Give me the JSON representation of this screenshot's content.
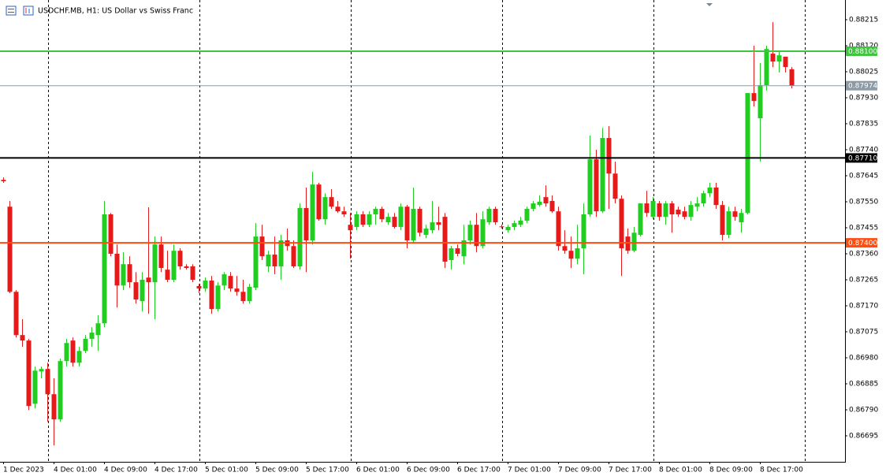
{
  "chart_data": {
    "type": "candlestick",
    "title": "USDCHF.MB, H1:  US Dollar vs Swiss Franc",
    "categories": [
      "1 Dec 2023",
      null,
      null,
      null,
      null,
      null,
      null,
      null,
      "4 Dec 01:00",
      null,
      null,
      null,
      null,
      null,
      null,
      null,
      "4 Dec 09:00",
      null,
      null,
      null,
      null,
      null,
      null,
      null,
      "4 Dec 17:00",
      null,
      null,
      null,
      null,
      null,
      null,
      null,
      "5 Dec 01:00",
      null,
      null,
      null,
      null,
      null,
      null,
      null,
      "5 Dec 09:00",
      null,
      null,
      null,
      null,
      null,
      null,
      null,
      "5 Dec 17:00",
      null,
      null,
      null,
      null,
      null,
      null,
      null,
      "6 Dec 01:00",
      null,
      null,
      null,
      null,
      null,
      null,
      null,
      "6 Dec 09:00",
      null,
      null,
      null,
      null,
      null,
      null,
      null,
      "6 Dec 17:00",
      null,
      null,
      null,
      null,
      null,
      null,
      null,
      "7 Dec 01:00",
      null,
      null,
      null,
      null,
      null,
      null,
      null,
      "7 Dec 09:00",
      null,
      null,
      null,
      null,
      null,
      null,
      null,
      "7 Dec 17:00",
      null,
      null,
      null,
      null,
      null,
      null,
      null,
      "8 Dec 01:00",
      null,
      null,
      null,
      null,
      null,
      null,
      null,
      "8 Dec 09:00",
      null,
      null,
      null,
      null,
      null,
      null,
      null,
      "8 Dec 17:00",
      null,
      null,
      null,
      null,
      null
    ],
    "open": [
      0.8763,
      0.87532,
      0.87221,
      0.87063,
      0.87043,
      0.86812,
      0.8693,
      0.86939,
      0.86847,
      0.86755,
      0.86968,
      0.87043,
      0.86962,
      0.87005,
      0.87049,
      0.87063,
      0.87106,
      0.87504,
      0.8736,
      0.87244,
      0.87322,
      0.87256,
      0.87187,
      0.87273,
      0.87256,
      0.87394,
      0.87302,
      0.87265,
      0.87371,
      0.87314,
      0.87314,
      0.87242,
      0.87233,
      0.87262,
      0.87158,
      0.87244,
      0.87279,
      0.87233,
      0.87221,
      0.87187,
      0.87236,
      0.87423,
      0.87314,
      0.87357,
      0.87314,
      0.87409,
      0.87388,
      0.87314,
      0.87527,
      0.87409,
      0.87613,
      0.87486,
      0.87567,
      0.87532,
      0.87515,
      0.87466,
      0.87458,
      0.87504,
      0.87466,
      0.87504,
      0.87524,
      0.87475,
      0.87495,
      0.87458,
      0.87532,
      0.87409,
      0.87524,
      0.87429,
      0.87446,
      0.87475,
      0.87495,
      0.87337,
      0.8738,
      0.87351,
      0.87409,
      0.87466,
      0.87388,
      0.87475,
      0.87524,
      0.8746,
      0.87446,
      0.87458,
      0.87466,
      0.87481,
      0.87524,
      0.87538,
      0.87567,
      0.87553,
      0.87515,
      0.87388,
      0.87371,
      0.87342,
      0.8738,
      0.87504,
      0.87705,
      0.87515,
      0.87783,
      0.87653,
      0.87561,
      0.87423,
      0.87371,
      0.87429,
      0.87544,
      0.87495,
      0.87544,
      0.87495,
      0.87544,
      0.87521,
      0.87515,
      0.87495,
      0.87532,
      0.87544,
      0.87581,
      0.87602,
      0.87538,
      0.87429,
      0.87515,
      0.87475,
      0.87509,
      0.87947,
      0.87855,
      0.87976,
      0.88091,
      0.88062,
      0.8808,
      0.88034
    ],
    "high": [
      0.87639,
      0.87553,
      0.87227,
      0.87121,
      0.87049,
      0.86948,
      0.86948,
      0.86962,
      0.86905,
      0.86977,
      0.87049,
      0.87054,
      0.8702,
      0.87063,
      0.87092,
      0.87135,
      0.87553,
      0.87509,
      0.87394,
      0.87365,
      0.87351,
      0.87293,
      0.87293,
      0.8753,
      0.87423,
      0.87423,
      0.87371,
      0.87394,
      0.8738,
      0.87322,
      0.87322,
      0.8725,
      0.87273,
      0.87279,
      0.87256,
      0.87293,
      0.87293,
      0.87279,
      0.87265,
      0.8725,
      0.87472,
      0.87466,
      0.87371,
      0.87423,
      0.87429,
      0.87452,
      0.87409,
      0.87544,
      0.87602,
      0.87659,
      0.87619,
      0.87581,
      0.87596,
      0.87553,
      0.87532,
      0.87509,
      0.87515,
      0.87515,
      0.87515,
      0.87532,
      0.87532,
      0.87509,
      0.87509,
      0.87544,
      0.87538,
      0.87602,
      0.87532,
      0.87466,
      0.87553,
      0.87532,
      0.87509,
      0.87388,
      0.87394,
      0.87466,
      0.87481,
      0.87509,
      0.87515,
      0.87532,
      0.87532,
      0.87466,
      0.87466,
      0.87481,
      0.87495,
      0.87532,
      0.87553,
      0.87573,
      0.8761,
      0.87573,
      0.87532,
      0.87446,
      0.87423,
      0.87466,
      0.87544,
      0.87792,
      0.8774,
      0.8782,
      0.87826,
      0.87697,
      0.87573,
      0.87452,
      0.87458,
      0.87544,
      0.8759,
      0.87567,
      0.87553,
      0.87553,
      0.87553,
      0.87532,
      0.87532,
      0.87553,
      0.87567,
      0.8759,
      0.87619,
      0.87619,
      0.87553,
      0.87532,
      0.87532,
      0.87524,
      0.87947,
      0.8812,
      0.88057,
      0.8812,
      0.88206,
      0.881,
      0.8808,
      0.88042
    ],
    "low": [
      0.87619,
      0.87216,
      0.87054,
      0.8702,
      0.86789,
      0.86795,
      0.86905,
      0.86746,
      0.8666,
      0.86746,
      0.86948,
      0.86948,
      0.86948,
      0.86997,
      0.8702,
      0.87005,
      0.87092,
      0.87351,
      0.87164,
      0.87227,
      0.87236,
      0.87178,
      0.87149,
      0.87141,
      0.87121,
      0.87293,
      0.87256,
      0.87256,
      0.87302,
      0.87302,
      0.87256,
      0.87216,
      0.87221,
      0.87141,
      0.87149,
      0.87227,
      0.87221,
      0.87207,
      0.87178,
      0.87178,
      0.87227,
      0.87337,
      0.87293,
      0.87285,
      0.87265,
      0.87371,
      0.87308,
      0.87302,
      0.87293,
      0.87394,
      0.87481,
      0.87466,
      0.87524,
      0.87509,
      0.87495,
      0.87342,
      0.87446,
      0.87458,
      0.87458,
      0.87466,
      0.87475,
      0.87466,
      0.87452,
      0.87446,
      0.8738,
      0.874,
      0.87423,
      0.87417,
      0.87434,
      0.87446,
      0.87308,
      0.87302,
      0.87351,
      0.87322,
      0.87394,
      0.87365,
      0.8738,
      0.87466,
      0.87466,
      0.87452,
      0.87437,
      0.87446,
      0.87458,
      0.87472,
      0.87515,
      0.87532,
      0.87532,
      0.87509,
      0.87371,
      0.8736,
      0.87308,
      0.87322,
      0.87285,
      0.87495,
      0.87495,
      0.87509,
      0.87524,
      0.87544,
      0.87279,
      0.8736,
      0.87365,
      0.87423,
      0.87495,
      0.87486,
      0.87481,
      0.87466,
      0.87437,
      0.87495,
      0.87486,
      0.87481,
      0.87515,
      0.87532,
      0.87567,
      0.87524,
      0.87409,
      0.87417,
      0.87481,
      0.87437,
      0.87504,
      0.87898,
      0.87697,
      0.87956,
      0.88042,
      0.88022,
      0.88022,
      0.87964
    ],
    "close": [
      0.87625,
      0.87221,
      0.87063,
      0.87043,
      0.86804,
      0.86933,
      0.86939,
      0.86847,
      0.86755,
      0.86968,
      0.87034,
      0.86962,
      0.87005,
      0.87049,
      0.87072,
      0.87106,
      0.87504,
      0.8736,
      0.87244,
      0.87322,
      0.87256,
      0.87193,
      0.87265,
      0.87256,
      0.87394,
      0.87308,
      0.87265,
      0.87371,
      0.87314,
      0.87308,
      0.87265,
      0.87233,
      0.87262,
      0.87158,
      0.87244,
      0.87285,
      0.87233,
      0.87221,
      0.87187,
      0.87239,
      0.87423,
      0.87351,
      0.87357,
      0.87314,
      0.87409,
      0.87388,
      0.87314,
      0.87527,
      0.87409,
      0.87613,
      0.87486,
      0.87567,
      0.87532,
      0.87515,
      0.87504,
      0.87446,
      0.87504,
      0.87466,
      0.87504,
      0.87524,
      0.87486,
      0.87495,
      0.87458,
      0.87532,
      0.87409,
      0.87524,
      0.87437,
      0.87452,
      0.87475,
      0.87466,
      0.87331,
      0.8738,
      0.8736,
      0.87409,
      0.87466,
      0.87388,
      0.87486,
      0.87524,
      0.87475,
      0.87458,
      0.87458,
      0.87472,
      0.87481,
      0.87524,
      0.87544,
      0.8755,
      0.87544,
      0.87515,
      0.87388,
      0.87371,
      0.87342,
      0.8738,
      0.87504,
      0.87705,
      0.87515,
      0.87783,
      0.87653,
      0.87561,
      0.8738,
      0.87371,
      0.87437,
      0.87544,
      0.87509,
      0.87553,
      0.87495,
      0.87544,
      0.87504,
      0.87504,
      0.87495,
      0.87538,
      0.87544,
      0.87581,
      0.87602,
      0.87538,
      0.87429,
      0.87515,
      0.87495,
      0.87509,
      0.87947,
      0.87918,
      0.87976,
      0.88108,
      0.88062,
      0.88085,
      0.88042,
      0.87974
    ],
    "up_color": "#22cc22",
    "down_color": "#e31b1b",
    "ylim": [
      0.866,
      0.88287
    ],
    "yticks": [
      0.88215,
      {
        "value": 0.8812,
        "label": "0.88120"
      },
      0.88025,
      {
        "value": 0.8793,
        "label": "0.87930"
      },
      0.87835,
      {
        "value": 0.8774,
        "label": "0.87740"
      },
      0.87645,
      {
        "value": 0.8755,
        "label": "0.87550"
      },
      0.87455,
      {
        "value": 0.8736,
        "label": "0.87360"
      },
      0.87265,
      {
        "value": 0.8717,
        "label": "0.87170"
      },
      0.87075,
      {
        "value": 0.8698,
        "label": "0.86980"
      },
      0.86885,
      {
        "value": 0.8679,
        "label": "0.86790"
      },
      0.86695
    ],
    "levels": [
      {
        "value": 0.881,
        "label": "0.88100",
        "color": "#3ec43e"
      },
      {
        "value": 0.87974,
        "label": "0.87974",
        "color": "#8c9aa6"
      },
      {
        "value": 0.8771,
        "label": "0.87710",
        "color": "#000000"
      },
      {
        "value": 0.874,
        "label": "0.87400",
        "color": "#ff4c0f"
      }
    ]
  }
}
